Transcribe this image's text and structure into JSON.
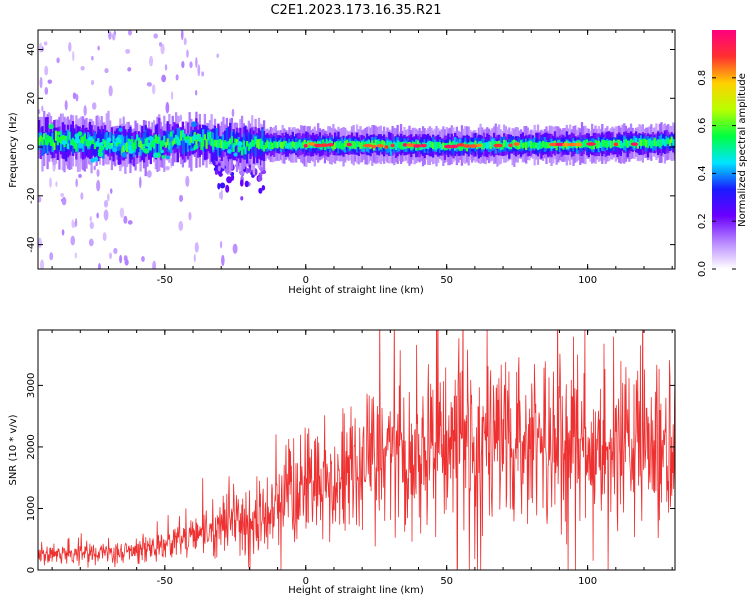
{
  "title": "C2E1.2023.173.16.35.R21",
  "chart_data": [
    {
      "type": "heatmap",
      "xlabel": "Height of straight line (km)",
      "ylabel": "Frequency (Hz)",
      "xlim": [
        -95,
        131
      ],
      "ylim": [
        -50,
        48
      ],
      "xticks": [
        -50,
        0,
        50,
        100
      ],
      "yticks": [
        -40,
        -20,
        0,
        20,
        40
      ],
      "grid": false,
      "colorbar": {
        "label": "Normalized spectral amplitude",
        "range": [
          0.0,
          1.0
        ],
        "ticks": [
          0.0,
          0.2,
          0.4,
          0.6,
          0.8
        ],
        "colors": [
          "#ffffff",
          "#b888ff",
          "#6a00ff",
          "#1a1aff",
          "#00e5ff",
          "#00ff40",
          "#b8ff00",
          "#ffd000",
          "#ff3030",
          "#ff007f"
        ]
      },
      "band_center_hz": [
        {
          "x": -95,
          "y": 3
        },
        {
          "x": -80,
          "y": 2
        },
        {
          "x": -60,
          "y": 1
        },
        {
          "x": -45,
          "y": 3
        },
        {
          "x": -35,
          "y": 2
        },
        {
          "x": -25,
          "y": 1
        },
        {
          "x": -18,
          "y": 1
        },
        {
          "x": 0,
          "y": 1
        },
        {
          "x": 50,
          "y": 0.5
        },
        {
          "x": 100,
          "y": 1
        },
        {
          "x": 131,
          "y": 2
        }
      ]
    },
    {
      "type": "line",
      "xlabel": "Height of straight line (km)",
      "ylabel": "SNR (10 * v/v)",
      "xlim": [
        -95,
        131
      ],
      "ylim": [
        0,
        3900
      ],
      "xticks": [
        -50,
        0,
        50,
        100
      ],
      "yticks": [
        0,
        1000,
        2000,
        3000
      ],
      "grid": false,
      "color": "#ee3030",
      "trend": [
        {
          "x": -95,
          "y": 220
        },
        {
          "x": -70,
          "y": 300
        },
        {
          "x": -50,
          "y": 380
        },
        {
          "x": -35,
          "y": 650
        },
        {
          "x": -25,
          "y": 800
        },
        {
          "x": -15,
          "y": 950
        },
        {
          "x": -5,
          "y": 1250
        },
        {
          "x": 10,
          "y": 1500
        },
        {
          "x": 25,
          "y": 1850
        },
        {
          "x": 40,
          "y": 2000
        },
        {
          "x": 60,
          "y": 2050
        },
        {
          "x": 80,
          "y": 2050
        },
        {
          "x": 100,
          "y": 2000
        },
        {
          "x": 131,
          "y": 1950
        }
      ]
    }
  ]
}
